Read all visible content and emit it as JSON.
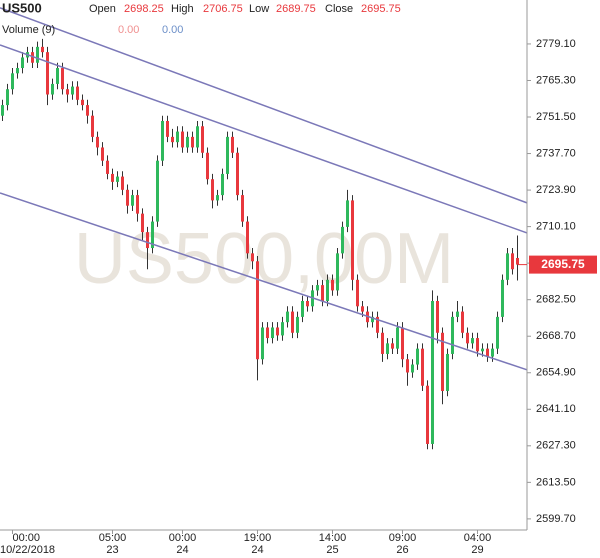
{
  "chart_data": {
    "type": "candlestick",
    "header": {
      "symbol": "US500",
      "open_label": "Open",
      "open": "2698.25",
      "high_label": "High",
      "high": "2706.75",
      "low_label": "Low",
      "low": "2689.75",
      "close_label": "Close",
      "close": "2695.75",
      "volume_label": "Volume (9)",
      "volume_a": "0.00",
      "volume_b": "0.00"
    },
    "watermark": "US500,00M",
    "up_color": "#2eb85c",
    "down_color": "#e8383d",
    "trend_color": "#7b78b8",
    "ylim": [
      2595.5,
      2795.7
    ],
    "yticks": [
      {
        "value": 2599.7,
        "label": "2599.70"
      },
      {
        "value": 2613.5,
        "label": "2613.50"
      },
      {
        "value": 2627.3,
        "label": "2627.30"
      },
      {
        "value": 2641.1,
        "label": "2641.10"
      },
      {
        "value": 2654.9,
        "label": "2654.90"
      },
      {
        "value": 2668.7,
        "label": "2668.70"
      },
      {
        "value": 2682.5,
        "label": "2682.50"
      },
      {
        "value": 2696.3,
        "label": "2696.30"
      },
      {
        "value": 2710.1,
        "label": "2710.10"
      },
      {
        "value": 2723.9,
        "label": "2723.90"
      },
      {
        "value": 2737.7,
        "label": "2737.70"
      },
      {
        "value": 2751.5,
        "label": "2751.50"
      },
      {
        "value": 2765.3,
        "label": "2765.30"
      },
      {
        "value": 2779.1,
        "label": "2779.10"
      }
    ],
    "last_price": {
      "value": 2695.75,
      "label": "2695.75"
    },
    "categories": [
      null,
      null,
      "00:00",
      null,
      null,
      null,
      null,
      null,
      null,
      null,
      null,
      null,
      null,
      null,
      null,
      null,
      null,
      null,
      null,
      null,
      null,
      null,
      "05:00",
      null,
      null,
      null,
      null,
      null,
      null,
      null,
      null,
      null,
      null,
      null,
      null,
      null,
      "00:00",
      null,
      null,
      null,
      null,
      null,
      null,
      null,
      null,
      null,
      null,
      null,
      null,
      null,
      null,
      "19:00",
      null,
      null,
      null,
      null,
      null,
      null,
      null,
      null,
      null,
      null,
      null,
      null,
      null,
      null,
      "14:00",
      null,
      null,
      null,
      null,
      null,
      null,
      null,
      null,
      null,
      null,
      null,
      null,
      null,
      "09:00",
      null,
      null,
      null,
      null,
      null,
      null,
      null,
      null,
      null,
      null,
      null,
      null,
      null,
      null,
      "04:00",
      null,
      null,
      null,
      null,
      null,
      null,
      null,
      null
    ],
    "dates": [
      null,
      null,
      "10/22/2018",
      null,
      null,
      null,
      null,
      null,
      null,
      null,
      null,
      null,
      null,
      null,
      null,
      null,
      null,
      null,
      null,
      null,
      null,
      null,
      "23",
      null,
      null,
      null,
      null,
      null,
      null,
      null,
      null,
      null,
      null,
      null,
      null,
      null,
      "24",
      null,
      null,
      null,
      null,
      null,
      null,
      null,
      null,
      null,
      null,
      null,
      null,
      null,
      null,
      "24",
      null,
      null,
      null,
      null,
      null,
      null,
      null,
      null,
      null,
      null,
      null,
      null,
      null,
      null,
      "25",
      null,
      null,
      null,
      null,
      null,
      null,
      null,
      null,
      null,
      null,
      null,
      null,
      null,
      "26",
      null,
      null,
      null,
      null,
      null,
      null,
      null,
      null,
      null,
      null,
      null,
      null,
      null,
      null,
      "29",
      null,
      null,
      null,
      null,
      null,
      null,
      null,
      null
    ],
    "open": [
      2752,
      2756,
      2762,
      2768,
      2770,
      2774,
      2776,
      2772,
      2778,
      2776,
      2760,
      2764,
      2770,
      2762,
      2760,
      2763,
      2758,
      2756,
      2752,
      2744,
      2740,
      2735,
      2730,
      2727,
      2729,
      2724,
      2718,
      2722,
      2715,
      2708,
      2702,
      2712,
      2735,
      2750,
      2744,
      2742,
      2746,
      2740,
      2744,
      2740,
      2748,
      2738,
      2728,
      2720,
      2722,
      2730,
      2744,
      2738,
      2722,
      2712,
      2700,
      2697,
      2660,
      2672,
      2668,
      2672,
      2669,
      2674,
      2678,
      2670,
      2676,
      2682,
      2680,
      2686,
      2688,
      2682,
      2690,
      2686,
      2700,
      2710,
      2720,
      2690,
      2680,
      2678,
      2674,
      2676,
      2670,
      2662,
      2666,
      2664,
      2672,
      2660,
      2655,
      2658,
      2664,
      2650,
      2628,
      2682,
      2670,
      2648,
      2662,
      2676,
      2678,
      2670,
      2666,
      2668,
      2663,
      2664,
      2661,
      2664,
      2676,
      2690,
      2700,
      2698.25
    ],
    "high": [
      2758,
      2764,
      2770,
      2772,
      2776,
      2778,
      2778,
      2780,
      2781,
      2778,
      2766,
      2772,
      2772,
      2764,
      2765,
      2765,
      2760,
      2758,
      2754,
      2746,
      2742,
      2737,
      2732,
      2731,
      2731,
      2726,
      2724,
      2724,
      2717,
      2710,
      2714,
      2737,
      2752,
      2752,
      2747,
      2748,
      2748,
      2746,
      2746,
      2750,
      2750,
      2740,
      2730,
      2724,
      2732,
      2746,
      2746,
      2740,
      2724,
      2714,
      2702,
      2699,
      2674,
      2674,
      2674,
      2674,
      2676,
      2680,
      2680,
      2678,
      2684,
      2684,
      2688,
      2690,
      2690,
      2692,
      2692,
      2702,
      2712,
      2724,
      2722,
      2692,
      2682,
      2680,
      2678,
      2678,
      2672,
      2668,
      2668,
      2674,
      2674,
      2662,
      2660,
      2666,
      2666,
      2652,
      2686,
      2684,
      2672,
      2664,
      2678,
      2682,
      2680,
      2672,
      2670,
      2670,
      2666,
      2666,
      2666,
      2678,
      2692,
      2702,
      2702,
      2706.75
    ],
    "low": [
      2750,
      2754,
      2760,
      2766,
      2768,
      2772,
      2770,
      2770,
      2774,
      2756,
      2758,
      2762,
      2760,
      2757,
      2758,
      2756,
      2754,
      2749,
      2742,
      2737,
      2733,
      2728,
      2724,
      2725,
      2722,
      2715,
      2716,
      2712,
      2705,
      2694,
      2700,
      2710,
      2733,
      2742,
      2740,
      2740,
      2738,
      2738,
      2738,
      2738,
      2736,
      2726,
      2717,
      2718,
      2720,
      2728,
      2736,
      2720,
      2710,
      2698,
      2694,
      2652,
      2658,
      2666,
      2666,
      2667,
      2667,
      2672,
      2668,
      2668,
      2674,
      2678,
      2678,
      2684,
      2680,
      2680,
      2684,
      2684,
      2698,
      2708,
      2686,
      2678,
      2676,
      2672,
      2672,
      2668,
      2659,
      2660,
      2662,
      2662,
      2657,
      2650,
      2653,
      2656,
      2648,
      2626,
      2626,
      2666,
      2643,
      2646,
      2660,
      2674,
      2668,
      2664,
      2664,
      2661,
      2661,
      2659,
      2659,
      2662,
      2674,
      2688,
      2692,
      2689.75
    ],
    "close": [
      2756,
      2762,
      2768,
      2770,
      2774,
      2776,
      2772,
      2778,
      2776,
      2760,
      2764,
      2770,
      2762,
      2760,
      2763,
      2758,
      2756,
      2752,
      2744,
      2740,
      2735,
      2730,
      2727,
      2729,
      2724,
      2718,
      2722,
      2715,
      2708,
      2702,
      2712,
      2735,
      2750,
      2744,
      2742,
      2746,
      2740,
      2744,
      2740,
      2748,
      2738,
      2728,
      2720,
      2722,
      2730,
      2744,
      2738,
      2722,
      2712,
      2700,
      2697,
      2660,
      2672,
      2668,
      2672,
      2669,
      2674,
      2678,
      2670,
      2676,
      2682,
      2680,
      2686,
      2688,
      2682,
      2690,
      2686,
      2700,
      2710,
      2720,
      2690,
      2680,
      2678,
      2674,
      2676,
      2670,
      2662,
      2666,
      2664,
      2672,
      2660,
      2655,
      2658,
      2664,
      2650,
      2628,
      2682,
      2670,
      2648,
      2662,
      2676,
      2678,
      2670,
      2666,
      2668,
      2663,
      2664,
      2661,
      2664,
      2676,
      2690,
      2700,
      2694,
      2695.75
    ],
    "trend_lines": [
      {
        "start": 2792.4,
        "end": 2720.4
      },
      {
        "start": 2778.4,
        "end": 2709.0
      },
      {
        "start": 2722.5,
        "end": 2657.2
      }
    ]
  }
}
